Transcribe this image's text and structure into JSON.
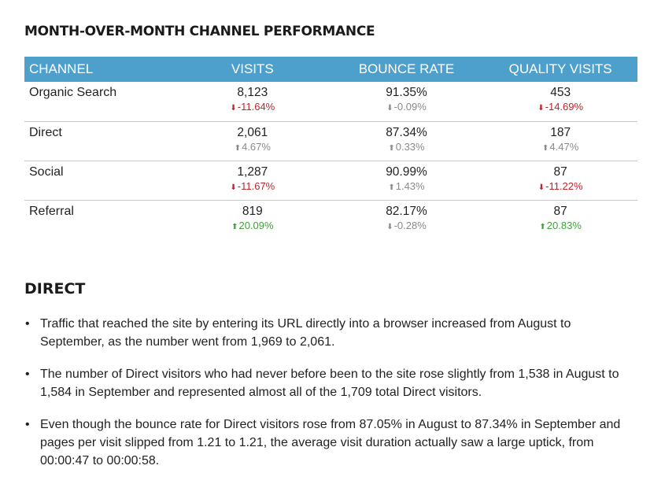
{
  "title": "MONTH-OVER-MONTH CHANNEL PERFORMANCE",
  "table": {
    "headers": [
      "CHANNEL",
      "VISITS",
      "BOUNCE RATE",
      "QUALITY VISITS"
    ],
    "rows": [
      {
        "channel": "Organic Search",
        "visits": {
          "value": "8,123",
          "change": "-11.64%",
          "dir": "down",
          "tone": "red"
        },
        "bounce": {
          "value": "91.35%",
          "change": "-0.09%",
          "dir": "down",
          "tone": "gray"
        },
        "quality": {
          "value": "453",
          "change": "-14.69%",
          "dir": "down",
          "tone": "red"
        }
      },
      {
        "channel": "Direct",
        "visits": {
          "value": "2,061",
          "change": "4.67%",
          "dir": "up",
          "tone": "gray"
        },
        "bounce": {
          "value": "87.34%",
          "change": "0.33%",
          "dir": "up",
          "tone": "gray"
        },
        "quality": {
          "value": "187",
          "change": "4.47%",
          "dir": "up",
          "tone": "gray"
        }
      },
      {
        "channel": "Social",
        "visits": {
          "value": "1,287",
          "change": "-11.67%",
          "dir": "down",
          "tone": "red"
        },
        "bounce": {
          "value": "90.99%",
          "change": "1.43%",
          "dir": "up",
          "tone": "gray"
        },
        "quality": {
          "value": "87",
          "change": "-11.22%",
          "dir": "down",
          "tone": "red"
        }
      },
      {
        "channel": "Referral",
        "visits": {
          "value": "819",
          "change": "20.09%",
          "dir": "up",
          "tone": "green"
        },
        "bounce": {
          "value": "82.17%",
          "change": "-0.28%",
          "dir": "down",
          "tone": "gray"
        },
        "quality": {
          "value": "87",
          "change": "20.83%",
          "dir": "up",
          "tone": "green"
        }
      }
    ]
  },
  "section": {
    "title": "DIRECT",
    "bullets": [
      "Traffic that reached the site by entering its URL directly into a browser increased from August to September, as the number went from 1,969 to 2,061.",
      "The number of Direct visitors who had never before been to the site rose slightly from 1,538 in August to 1,584 in September and represented almost all of the 1,709 total Direct visitors.",
      "Even though the bounce rate for Direct visitors rose from 87.05% in August to 87.34% in September and pages per visit slipped from 1.21 to 1.21, the average visit duration actually saw a large uptick, from 00:00:47 to 00:00:58."
    ]
  },
  "colors": {
    "header_bg": "#4ea0cc",
    "down_red": "#c0222b",
    "up_green": "#3ea33a",
    "neutral_gray": "#8a8a8a"
  },
  "icons": {
    "up": "arrow-up-icon",
    "down": "arrow-down-icon"
  }
}
